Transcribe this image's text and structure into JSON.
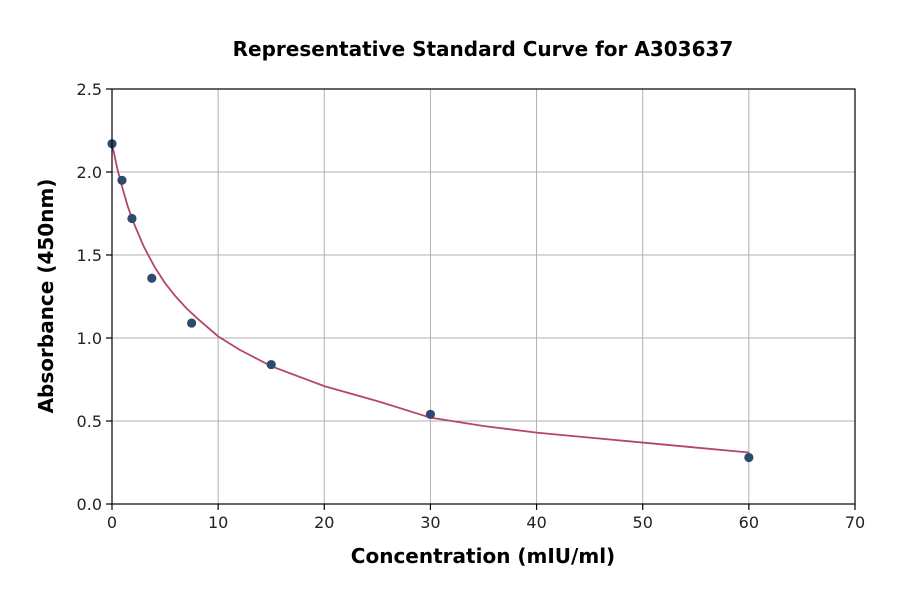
{
  "chart_data": {
    "type": "scatter",
    "title": "Representative Standard Curve for A303637",
    "xlabel": "Concentration (mIU/ml)",
    "ylabel": "Absorbance (450nm)",
    "xlim": [
      0,
      70
    ],
    "ylim": [
      0,
      2.5
    ],
    "xticks": [
      0,
      10,
      20,
      30,
      40,
      50,
      60,
      70
    ],
    "yticks": [
      0.0,
      0.5,
      1.0,
      1.5,
      2.0,
      2.5
    ],
    "xtick_labels": [
      "0",
      "10",
      "20",
      "30",
      "40",
      "50",
      "60",
      "70"
    ],
    "ytick_labels": [
      "0.0",
      "0.5",
      "1.0",
      "1.5",
      "2.0",
      "2.5"
    ],
    "grid": true,
    "series": [
      {
        "kind": "points",
        "color": "#2e4a6e",
        "x": [
          0,
          0.94,
          1.88,
          3.75,
          7.5,
          15,
          30,
          60
        ],
        "y": [
          2.17,
          1.95,
          1.72,
          1.36,
          1.09,
          0.84,
          0.54,
          0.28
        ]
      },
      {
        "kind": "fit-curve",
        "color": "#b5456b",
        "x": [
          0,
          0.5,
          1,
          1.5,
          2,
          3,
          4,
          5,
          6,
          7,
          8,
          10,
          12,
          15,
          20,
          25,
          30,
          35,
          40,
          45,
          50,
          55,
          60
        ],
        "y": [
          2.17,
          2.02,
          1.9,
          1.79,
          1.7,
          1.55,
          1.43,
          1.33,
          1.25,
          1.18,
          1.12,
          1.01,
          0.93,
          0.83,
          0.71,
          0.62,
          0.52,
          0.47,
          0.43,
          0.4,
          0.37,
          0.34,
          0.31
        ]
      }
    ]
  }
}
